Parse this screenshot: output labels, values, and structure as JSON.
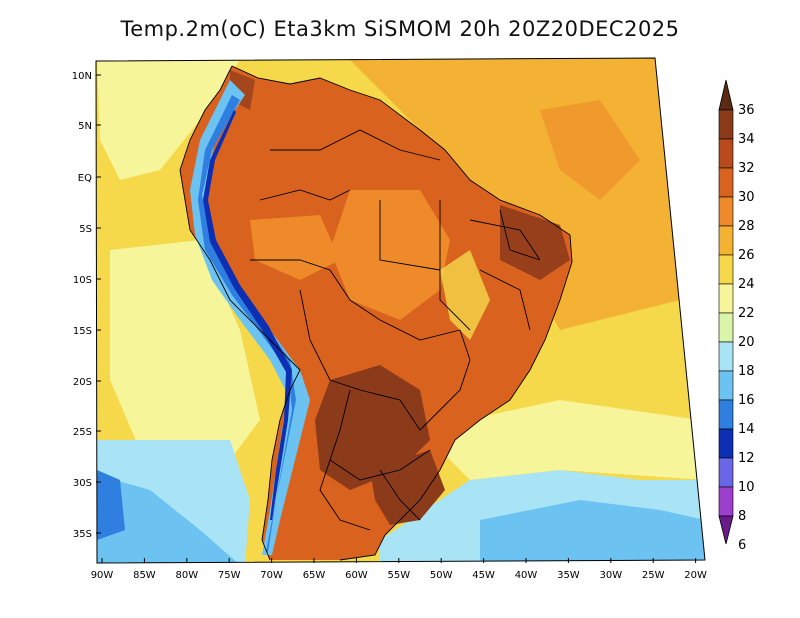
{
  "title": "Temp.2m(oC) Eta3km SiSMOM 20h 20Z20DEC2025",
  "lat_labels": [
    "10N",
    "5N",
    "EQ",
    "5S",
    "10S",
    "15S",
    "20S",
    "25S",
    "30S",
    "35S"
  ],
  "lon_labels": [
    "90W",
    "85W",
    "80W",
    "75W",
    "70W",
    "65W",
    "60W",
    "55W",
    "50W",
    "45W",
    "40W",
    "35W",
    "30W",
    "25W",
    "20W"
  ],
  "colorbar": {
    "unit": "oC",
    "labels": [
      "36",
      "34",
      "32",
      "30",
      "28",
      "26",
      "24",
      "22",
      "20",
      "18",
      "16",
      "14",
      "12",
      "10",
      "8",
      "6"
    ],
    "colors": [
      "#5a2a14",
      "#8b3a1a",
      "#b84a1c",
      "#d9621e",
      "#ee8a2a",
      "#f4b233",
      "#f5d94a",
      "#f7f59a",
      "#d8f5a8",
      "#a8e4f5",
      "#6cc2f0",
      "#2f7fe0",
      "#0c2fb4",
      "#6a66e8",
      "#9c3fcf",
      "#6a1a8a"
    ]
  },
  "map_legend_colors": {
    "ocean_warm": "#f3b233",
    "ocean_mild": "#f5d94a",
    "ocean_cool": "#f7f59a",
    "ocean_cold": "#a8e4f5",
    "ocean_colder": "#6cc2f0",
    "land_hot": "#d9621e",
    "land_very_hot": "#8b3a1a",
    "andes": "#2f7fe0",
    "border": "#000000"
  }
}
